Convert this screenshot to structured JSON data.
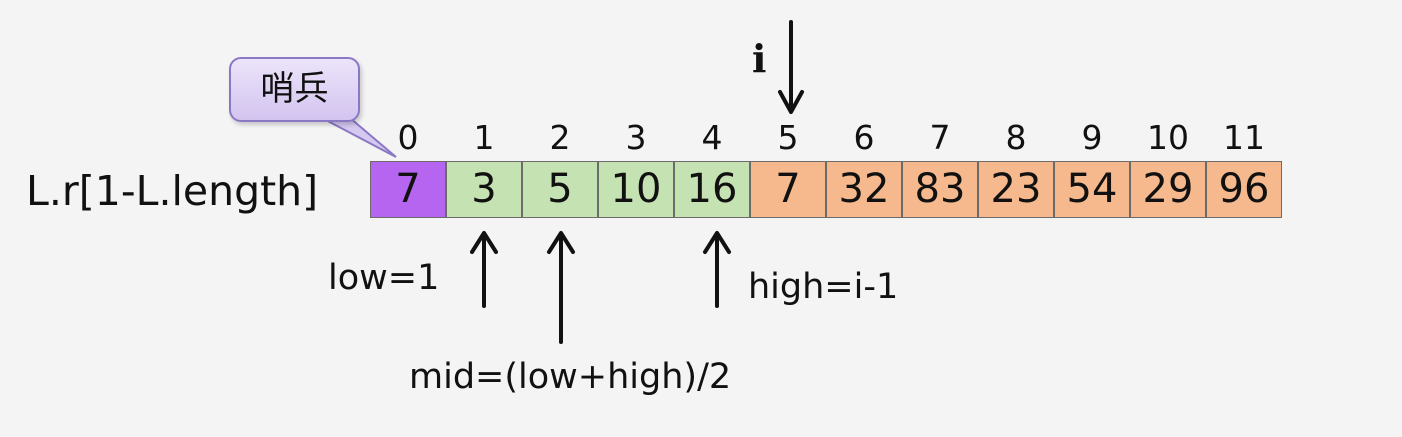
{
  "array_label": "L.r[1-L.length]",
  "indices": [
    "0",
    "1",
    "2",
    "3",
    "4",
    "5",
    "6",
    "7",
    "8",
    "9",
    "10",
    "11"
  ],
  "cells": [
    {
      "value": "7",
      "group": "sentinel"
    },
    {
      "value": "3",
      "group": "sorted"
    },
    {
      "value": "5",
      "group": "sorted"
    },
    {
      "value": "10",
      "group": "sorted"
    },
    {
      "value": "16",
      "group": "sorted"
    },
    {
      "value": "7",
      "group": "unsorted"
    },
    {
      "value": "32",
      "group": "unsorted"
    },
    {
      "value": "83",
      "group": "unsorted"
    },
    {
      "value": "23",
      "group": "unsorted"
    },
    {
      "value": "54",
      "group": "unsorted"
    },
    {
      "value": "29",
      "group": "unsorted"
    },
    {
      "value": "96",
      "group": "unsorted"
    }
  ],
  "colors": {
    "sentinel": "#b565f0",
    "sorted": "#c5e2b2",
    "unsorted": "#f6b88d",
    "callout_fill": "#ddd2f3"
  },
  "callout": {
    "text": "哨兵"
  },
  "pointers": {
    "i": "i",
    "low": "low=1",
    "mid": "mid=(low+high)/2",
    "high": "high=i-1"
  }
}
